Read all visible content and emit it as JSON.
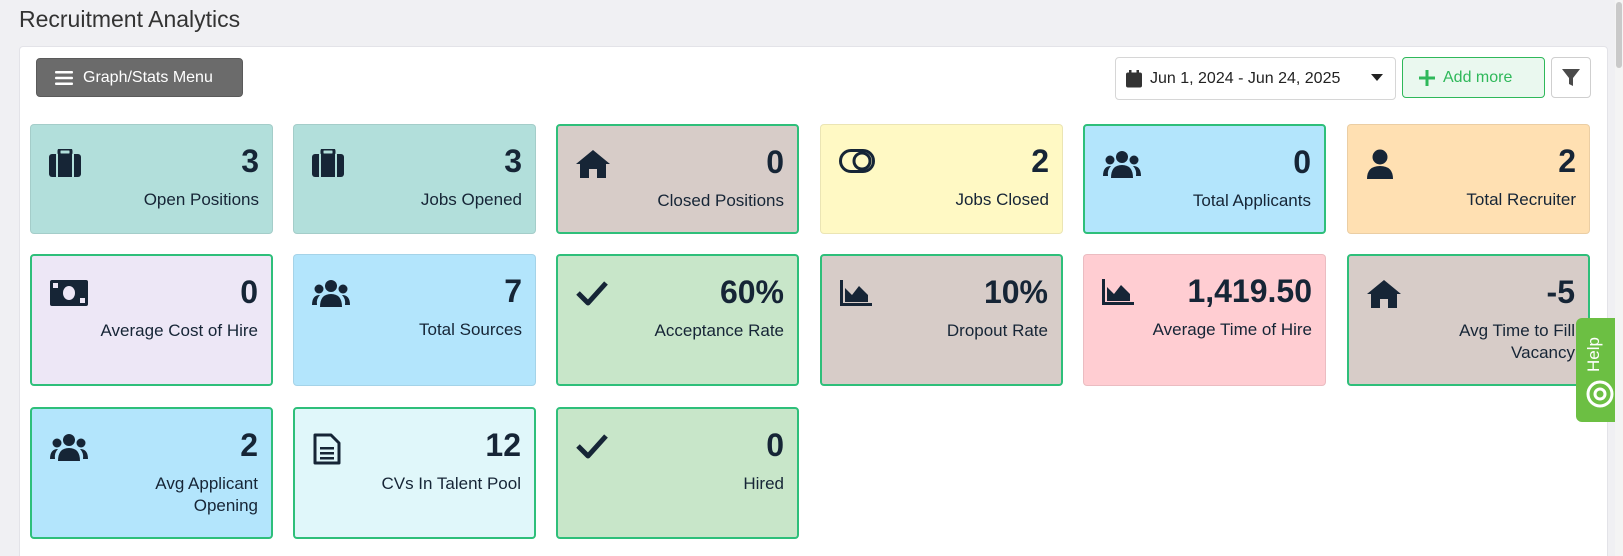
{
  "page": {
    "title": "Recruitment Analytics"
  },
  "toolbar": {
    "menu_label": "Graph/Stats Menu",
    "date_range": "Jun 1, 2024 - Jun 24, 2025",
    "add_more_label": "Add more"
  },
  "cards": [
    {
      "value": "3",
      "label": "Open Positions",
      "icon": "briefcase-icon",
      "bg": "#b2dfdb",
      "highlight": false
    },
    {
      "value": "3",
      "label": "Jobs Opened",
      "icon": "briefcase-icon",
      "bg": "#b2dfdb",
      "highlight": false
    },
    {
      "value": "0",
      "label": "Closed Positions",
      "icon": "home-icon",
      "bg": "#d7ccc8",
      "highlight": true
    },
    {
      "value": "2",
      "label": "Jobs Closed",
      "icon": "toggle-icon",
      "bg": "#fff9c4",
      "highlight": false
    },
    {
      "value": "0",
      "label": "Total Applicants",
      "icon": "users-icon",
      "bg": "#b3e5fc",
      "highlight": true
    },
    {
      "value": "2",
      "label": "Total Recruiter",
      "icon": "user-icon",
      "bg": "#ffe0b2",
      "highlight": false
    },
    {
      "value": "0",
      "label": "Average Cost of Hire",
      "icon": "money-icon",
      "bg": "#ede7f6",
      "highlight": true
    },
    {
      "value": "7",
      "label": "Total Sources",
      "icon": "users-icon",
      "bg": "#b3e5fc",
      "highlight": false
    },
    {
      "value": "60%",
      "label": "Acceptance Rate",
      "icon": "check-icon",
      "bg": "#c8e6c9",
      "highlight": true
    },
    {
      "value": "10%",
      "label": "Dropout Rate",
      "icon": "area-chart-icon",
      "bg": "#d7ccc8",
      "highlight": true
    },
    {
      "value": "1,419.50",
      "label": "Average Time of Hire",
      "icon": "area-chart-icon",
      "bg": "#ffcdd2",
      "highlight": false
    },
    {
      "value": "-5",
      "label": "Avg Time to Fill Vacancy",
      "icon": "home-icon",
      "bg": "#d7ccc8",
      "highlight": true
    },
    {
      "value": "2",
      "label": "Avg Applicant Opening",
      "icon": "users-icon",
      "bg": "#b3e5fc",
      "highlight": true
    },
    {
      "value": "12",
      "label": "CVs In Talent Pool",
      "icon": "document-icon",
      "bg": "#e0f7fa",
      "highlight": true
    },
    {
      "value": "0",
      "label": "Hired",
      "icon": "check-icon",
      "bg": "#c8e6c9",
      "highlight": true
    }
  ],
  "help": {
    "label": "Help"
  }
}
